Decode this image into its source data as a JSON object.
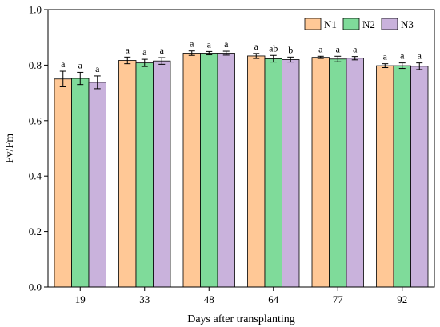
{
  "chart_data": {
    "type": "bar",
    "xlabel": "Days after transplanting",
    "ylabel": "Fv/Fm",
    "ylim": [
      0,
      1.0
    ],
    "yticks": [
      "0.0",
      "0.2",
      "0.4",
      "0.6",
      "0.8",
      "1.0"
    ],
    "grid": false,
    "legend_position": "top-right",
    "categories": [
      "19",
      "33",
      "48",
      "64",
      "77",
      "92"
    ],
    "series": [
      {
        "name": "N1",
        "color": "#FFC896",
        "values": [
          0.75,
          0.817,
          0.843,
          0.833,
          0.828,
          0.798
        ],
        "errors": [
          0.028,
          0.012,
          0.008,
          0.009,
          0.004,
          0.007
        ],
        "letters": [
          "a",
          "a",
          "a",
          "a",
          "a",
          "a"
        ]
      },
      {
        "name": "N2",
        "color": "#7FDB9A",
        "values": [
          0.752,
          0.808,
          0.843,
          0.823,
          0.822,
          0.798
        ],
        "errors": [
          0.022,
          0.013,
          0.006,
          0.012,
          0.01,
          0.01
        ],
        "letters": [
          "a",
          "a",
          "a",
          "ab",
          "a",
          "a"
        ]
      },
      {
        "name": "N3",
        "color": "#C9B2DC",
        "values": [
          0.738,
          0.815,
          0.843,
          0.82,
          0.825,
          0.796
        ],
        "errors": [
          0.023,
          0.012,
          0.007,
          0.009,
          0.006,
          0.012
        ],
        "letters": [
          "a",
          "a",
          "a",
          "b",
          "a",
          "a"
        ]
      }
    ]
  }
}
